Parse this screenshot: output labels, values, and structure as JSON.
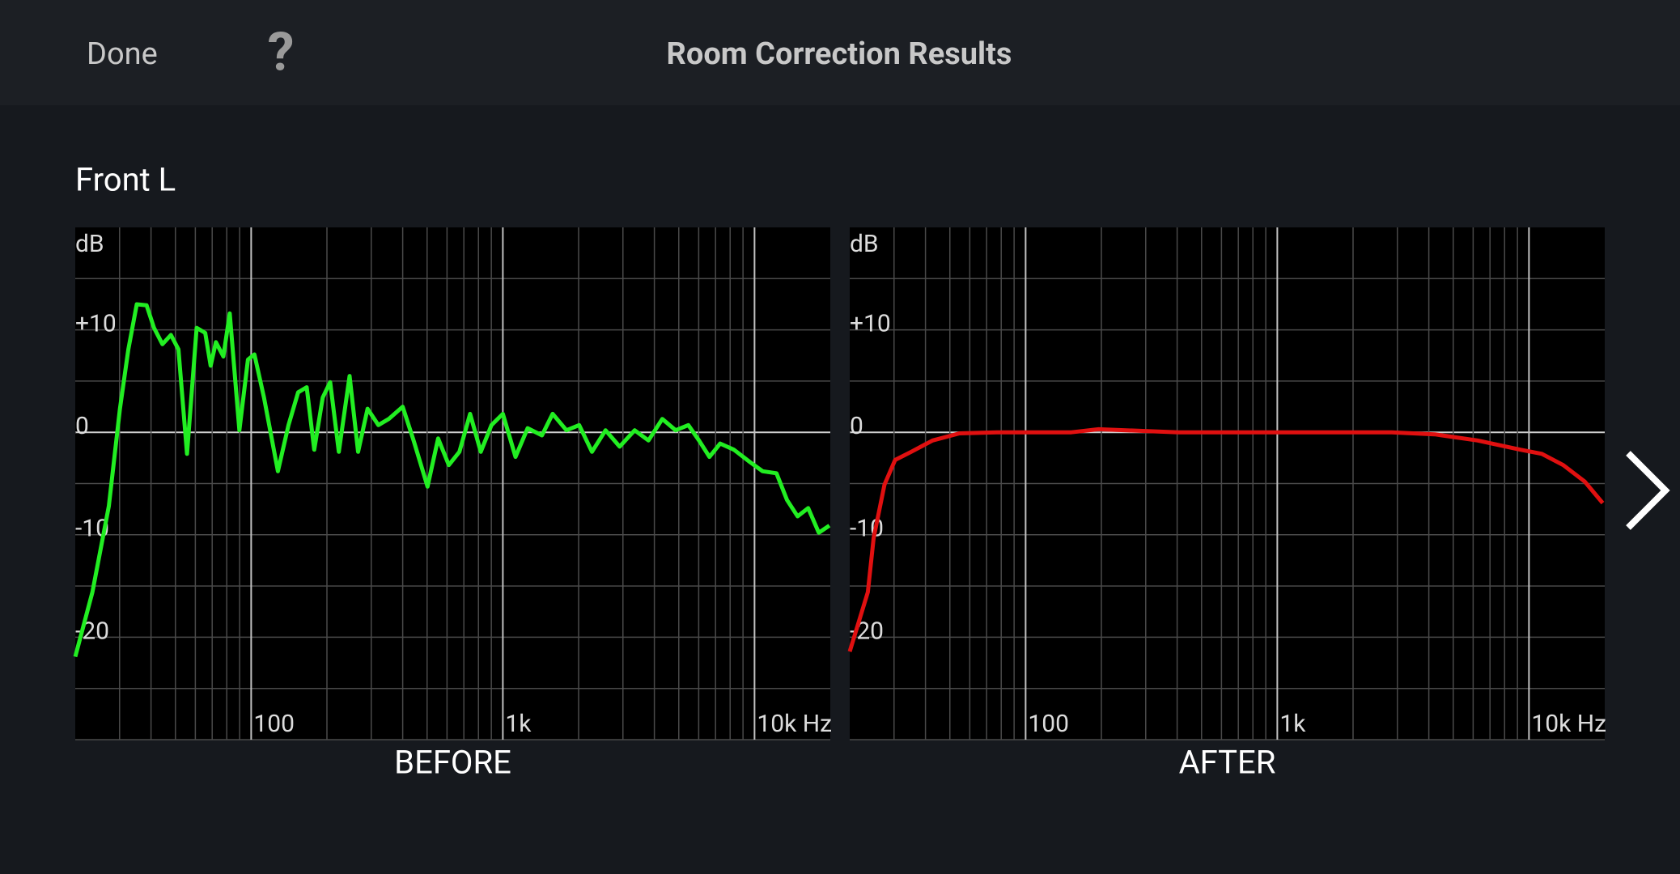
{
  "header": {
    "done": "Done",
    "help": "?",
    "title": "Room Correction Results"
  },
  "section": "Front L",
  "chart_data": [
    {
      "type": "line",
      "title": "BEFORE",
      "y_label": "dB",
      "xlog": true,
      "xlim": [
        20,
        20000
      ],
      "ylim": [
        -30,
        20
      ],
      "xticks": [
        {
          "value": 100,
          "label": "100"
        },
        {
          "value": 1000,
          "label": "1k"
        },
        {
          "value": 10000,
          "label": "10k Hz"
        }
      ],
      "xminor": [
        30,
        40,
        50,
        60,
        70,
        80,
        90,
        200,
        300,
        400,
        500,
        600,
        700,
        800,
        900,
        2000,
        3000,
        4000,
        5000,
        6000,
        7000,
        8000,
        9000
      ],
      "yticks": [
        {
          "value": 10,
          "label": "+10"
        },
        0,
        -10,
        -20
      ],
      "ygrid": [
        -30,
        -25,
        -20,
        -15,
        -10,
        -5,
        0,
        5,
        10,
        15
      ],
      "x": [
        20,
        23.4,
        27.2,
        30.1,
        32.5,
        35.1,
        38.4,
        41.1,
        44.4,
        48,
        51.4,
        55.6,
        60.7,
        65.7,
        69,
        72.4,
        77.5,
        82.2,
        89.8,
        97.1,
        103,
        112.4,
        127.7,
        140.7,
        153.7,
        166.2,
        178,
        192.5,
        206,
        223,
        246,
        266,
        290,
        320,
        352,
        400,
        442,
        502,
        553,
        610,
        672,
        741,
        817,
        901,
        1000,
        1123,
        1254,
        1430,
        1577,
        1790,
        2010,
        2260,
        2560,
        2910,
        3340,
        3790,
        4300,
        4860,
        5460,
        6020,
        6620,
        7300,
        8280,
        9580,
        10770,
        12220,
        13460,
        14830,
        16340,
        18000,
        19840
      ],
      "series": [
        {
          "color": "#22ee22",
          "values": [
            -21.9,
            -15.6,
            -7.2,
            2.3,
            8.1,
            12.5,
            12.4,
            10.2,
            8.6,
            9.5,
            8.1,
            -2.1,
            10.2,
            9.7,
            6.5,
            8.8,
            7.4,
            11.6,
            0.2,
            7.1,
            7.6,
            3.4,
            -3.8,
            0.7,
            3.9,
            4.4,
            -1.7,
            3.4,
            4.9,
            -1.9,
            5.5,
            -1.9,
            2.3,
            0.7,
            1.3,
            2.5,
            -0.8,
            -5.3,
            -0.6,
            -3.2,
            -1.9,
            1.8,
            -1.9,
            0.7,
            1.8,
            -2.4,
            0.4,
            -0.3,
            1.8,
            0.2,
            0.7,
            -1.9,
            0.2,
            -1.4,
            0.2,
            -0.8,
            1.3,
            0.2,
            0.7,
            -0.8,
            -2.4,
            -1.1,
            -1.7,
            -2.9,
            -3.8,
            -4.0,
            -6.6,
            -8.2,
            -7.4,
            -9.8,
            -9.1
          ]
        }
      ]
    },
    {
      "type": "line",
      "title": "AFTER",
      "y_label": "dB",
      "xlog": true,
      "xlim": [
        20,
        20000
      ],
      "ylim": [
        -30,
        20
      ],
      "xticks": [
        {
          "value": 100,
          "label": "100"
        },
        {
          "value": 1000,
          "label": "1k"
        },
        {
          "value": 10000,
          "label": "10k Hz"
        }
      ],
      "xminor": [
        30,
        40,
        50,
        60,
        70,
        80,
        90,
        200,
        300,
        400,
        500,
        600,
        700,
        800,
        900,
        2000,
        3000,
        4000,
        5000,
        6000,
        7000,
        8000,
        9000
      ],
      "yticks": [
        {
          "value": 10,
          "label": "+10"
        },
        0,
        -10,
        -20
      ],
      "ygrid": [
        -30,
        -25,
        -20,
        -15,
        -10,
        -5,
        0,
        5,
        10,
        15
      ],
      "x": [
        20,
        23.6,
        24.9,
        27.5,
        30.3,
        35.1,
        42.7,
        54.6,
        76.8,
        152,
        195,
        404,
        1073,
        2850,
        4220,
        6250,
        9250,
        11250,
        13680,
        16640,
        19640
      ],
      "series": [
        {
          "color": "#e01010",
          "values": [
            -21.4,
            -15.6,
            -10.3,
            -5.1,
            -2.7,
            -1.9,
            -0.8,
            -0.1,
            0,
            0,
            0.3,
            0,
            0,
            0,
            -0.2,
            -0.8,
            -1.7,
            -2.1,
            -3.2,
            -4.8,
            -6.9
          ]
        }
      ]
    }
  ]
}
